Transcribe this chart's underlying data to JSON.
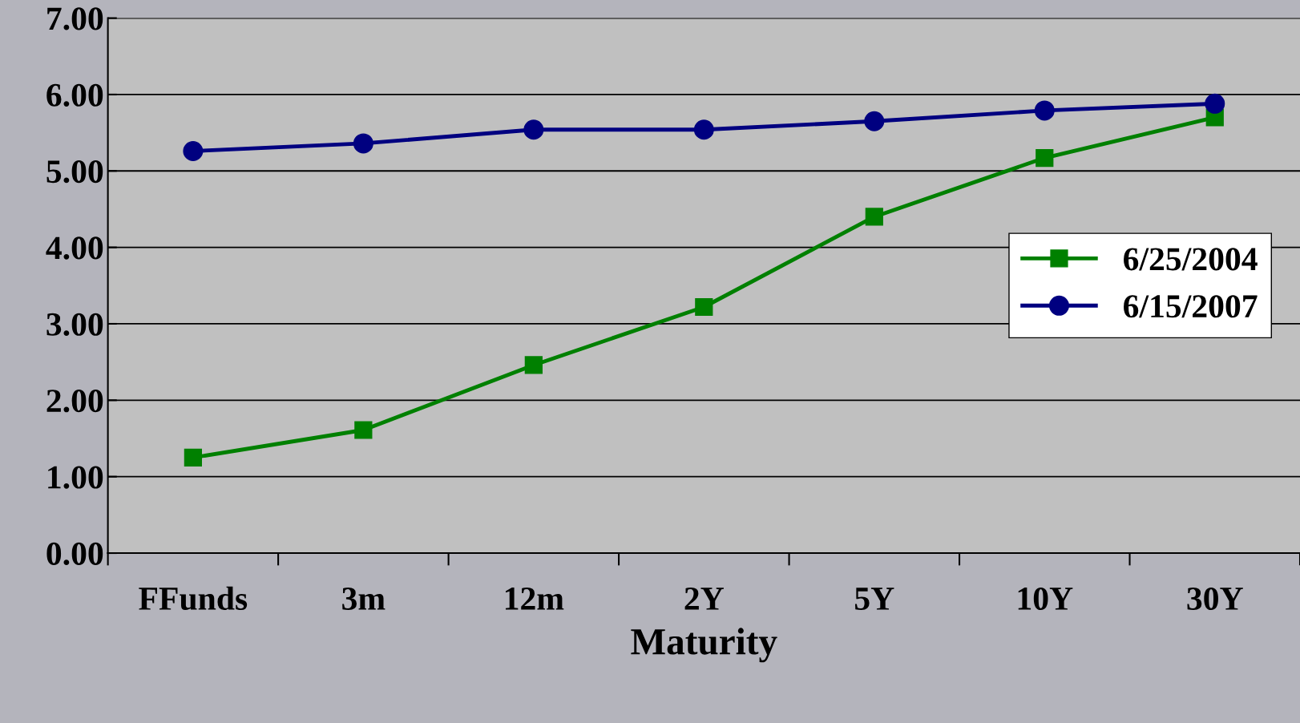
{
  "chart_data": {
    "type": "line",
    "xlabel": "Maturity",
    "categories": [
      "FFunds",
      "3m",
      "12m",
      "2Y",
      "5Y",
      "10Y",
      "30Y"
    ],
    "series": [
      {
        "name": "6/25/2004",
        "color": "#008000",
        "marker": "square",
        "values": [
          1.25,
          1.61,
          2.46,
          3.22,
          4.4,
          5.17,
          5.7
        ]
      },
      {
        "name": "6/15/2007",
        "color": "#000080",
        "marker": "circle",
        "values": [
          5.26,
          5.36,
          5.54,
          5.54,
          5.65,
          5.79,
          5.88
        ]
      }
    ],
    "ylim": [
      0,
      7
    ],
    "yticks": [
      {
        "value": 0,
        "label": "0.00"
      },
      {
        "value": 1,
        "label": "1.00"
      },
      {
        "value": 2,
        "label": "2.00"
      },
      {
        "value": 3,
        "label": "3.00"
      },
      {
        "value": 4,
        "label": "4.00"
      },
      {
        "value": 5,
        "label": "5.00"
      },
      {
        "value": 6,
        "label": "6.00"
      },
      {
        "value": 7,
        "label": "7.00"
      }
    ],
    "grid": "y",
    "legend": "right",
    "line_style": "solid"
  }
}
